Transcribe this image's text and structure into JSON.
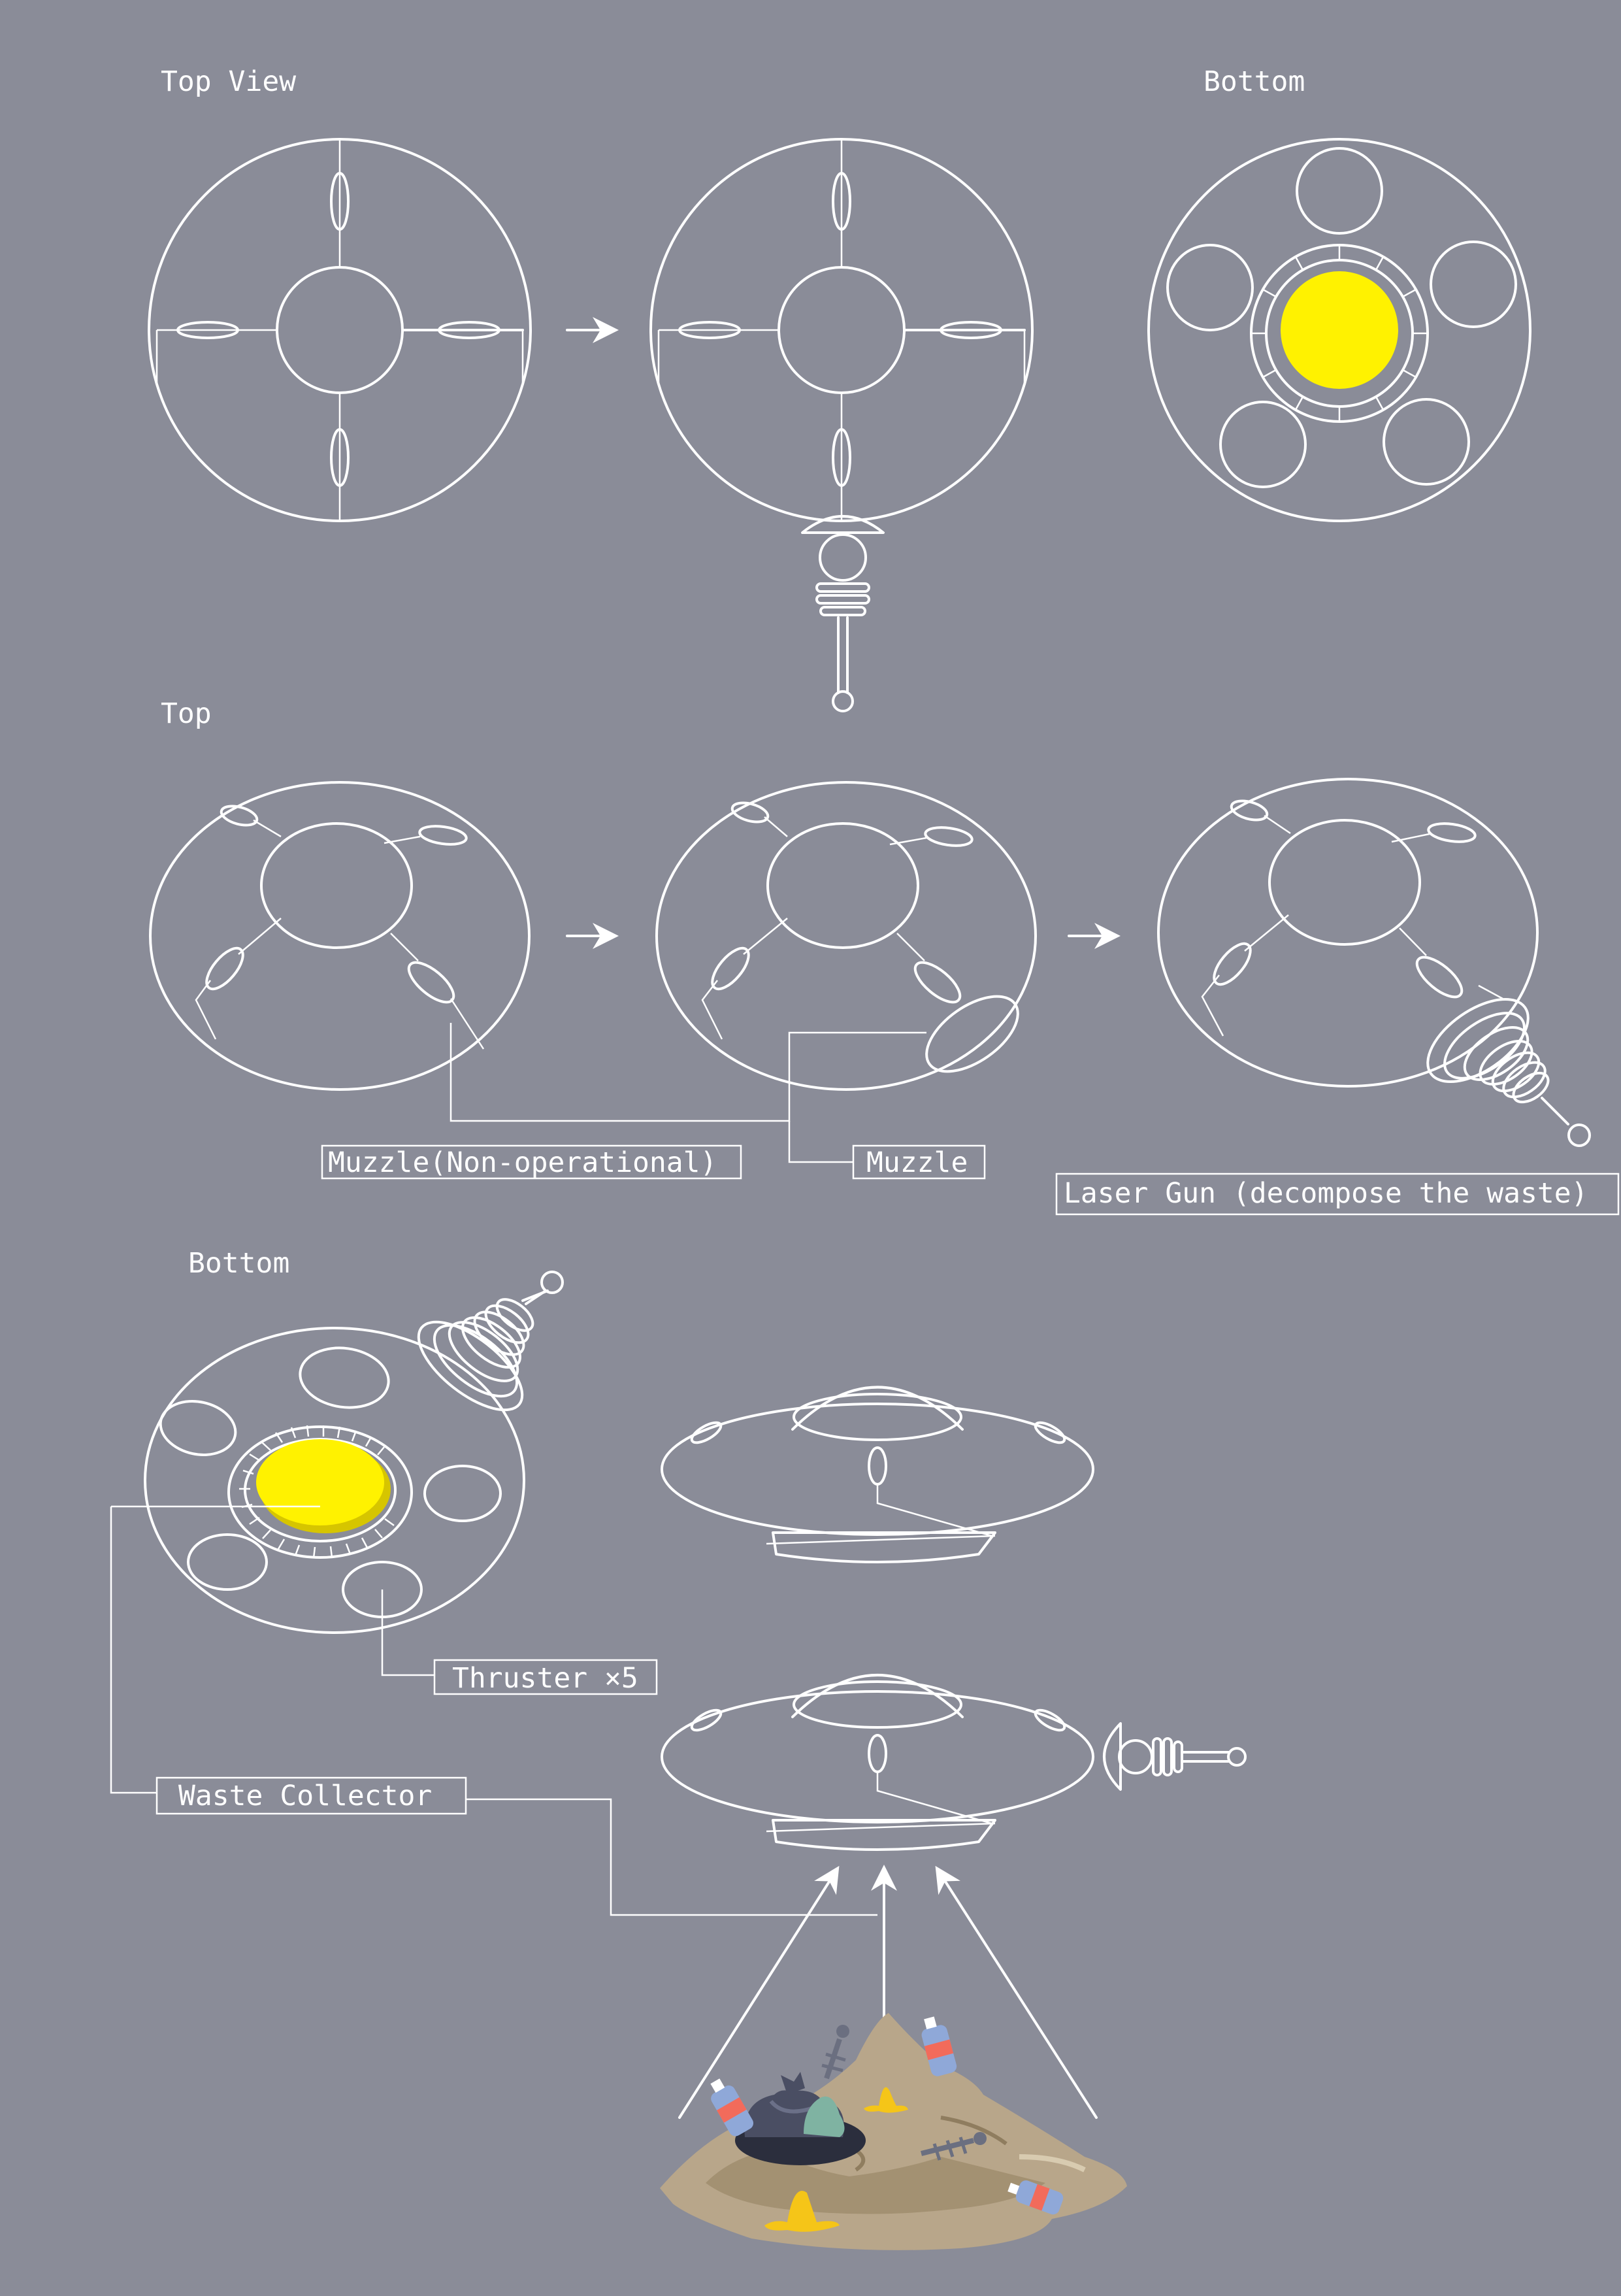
{
  "titles": {
    "top_view": "Top View",
    "bottom_view": "Bottom",
    "top": "Top",
    "bottom": "Bottom"
  },
  "labels": {
    "muzzle_nonop": "Muzzle(Non-operational)",
    "muzzle": "Muzzle",
    "laser_gun": "Laser Gun (decompose the waste)",
    "thruster": "Thruster ×5",
    "waste_collector": "Waste Collector"
  },
  "colors": {
    "background": "#8a8c98",
    "line": "#ffffff",
    "collector": "#fff200",
    "collector_shadow": "#d6c500",
    "garbage_soil": "#b8a68a",
    "garbage_bag": "#4a4e63",
    "bottle_cap": "#f26b5b",
    "bottle_body": "#8fa8d8",
    "banana": "#f5c518"
  }
}
